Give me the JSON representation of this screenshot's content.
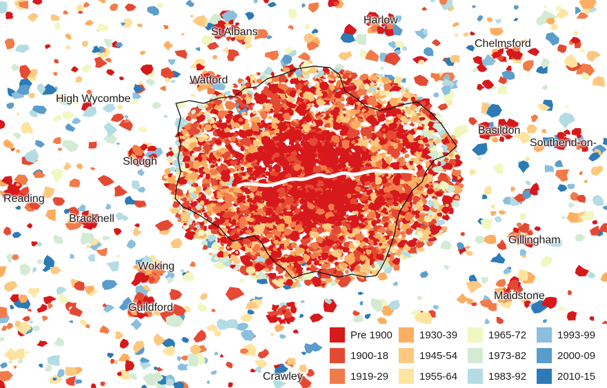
{
  "towns": [
    "St Albans",
    "Harlow",
    "Chelmsford",
    "Watford",
    "High Wycombe",
    "Basildon",
    "Southend-on-",
    "Slough",
    "Reading",
    "Bracknell",
    "Gillingham",
    "Woking",
    "Maidstone",
    "Guildford",
    "Crawley"
  ],
  "legend": [
    {
      "label": "Pre 1900",
      "color": "#d7191c"
    },
    {
      "label": "1900-18",
      "color": "#e44a33"
    },
    {
      "label": "1919-29",
      "color": "#f17c4a"
    },
    {
      "label": "1930-39",
      "color": "#fdae61"
    },
    {
      "label": "1945-54",
      "color": "#fdc980"
    },
    {
      "label": "1955-64",
      "color": "#fee4a0"
    },
    {
      "label": "1965-72",
      "color": "#f1f7c0"
    },
    {
      "label": "1973-82",
      "color": "#d3ebd3"
    },
    {
      "label": "1983-92",
      "color": "#b4dce3"
    },
    {
      "label": "1993-99",
      "color": "#8cbfde"
    },
    {
      "label": "2000-09",
      "color": "#5a9ccc"
    },
    {
      "label": "2010-15",
      "color": "#2c7bb6"
    }
  ],
  "river_color": "#ffffff",
  "boundary_color": "#111111"
}
